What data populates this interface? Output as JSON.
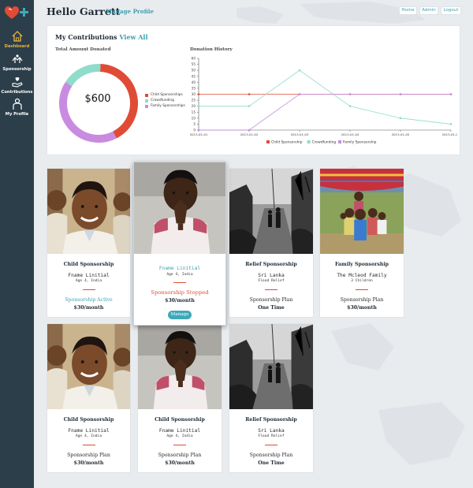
{
  "header": {
    "greeting": "Hello Garrett",
    "manage_profile": "Manage Profile",
    "nav": [
      "Home",
      "Admin",
      "Logout"
    ]
  },
  "sidebar": {
    "logo_icon": "heart-plus-logo",
    "items": [
      {
        "label": "Dashboard",
        "icon": "home-icon",
        "active": true
      },
      {
        "label": "Sponsorship",
        "icon": "hands-icon",
        "active": false
      },
      {
        "label": "Contributions",
        "icon": "hand-heart-icon",
        "active": false
      },
      {
        "label": "My Profile",
        "icon": "person-icon",
        "active": false
      }
    ]
  },
  "contributions": {
    "title": "My Contributions",
    "view_all": "View All",
    "total_label": "Total Amount Donated",
    "total_value": "$600",
    "history_label": "Donation History"
  },
  "colors": {
    "child": "#e04b35",
    "crowd": "#8fdccb",
    "family": "#c98be0",
    "accent": "#3e9fae",
    "sidebar": "#2c3e4a"
  },
  "chart_data": [
    {
      "type": "pie",
      "title": "Total Amount Donated",
      "center_label": "$600",
      "categories": [
        "Child Sponsorships",
        "Crowdfunding",
        "Family Sponsorships"
      ],
      "values": [
        250,
        100,
        250
      ]
    },
    {
      "type": "line",
      "title": "Donation History",
      "x": [
        "2013-01-01",
        "2013-01-02",
        "2013-01-03",
        "2013-01-04",
        "2013-01-05",
        "2013-01-06"
      ],
      "series": [
        {
          "name": "Child Sponsorship",
          "values": [
            30,
            30,
            30,
            30,
            30,
            30
          ]
        },
        {
          "name": "Crowdfunding",
          "values": [
            20,
            20,
            50,
            20,
            10,
            5
          ]
        },
        {
          "name": "Family Sponsorship",
          "values": [
            0,
            0,
            30,
            30,
            30,
            30
          ]
        }
      ],
      "ylim": [
        0,
        60
      ],
      "yticks": [
        0,
        5,
        10,
        15,
        20,
        25,
        30,
        35,
        40,
        45,
        50,
        55,
        60
      ],
      "legend": "bottom",
      "grid": false
    }
  ],
  "cards": [
    {
      "type": "Child Sponsorship",
      "name": "Fname Linitial",
      "sub": "Age 4, India",
      "status": "Sponsorship Active",
      "amount": "$30/month",
      "photo": "boy-smiling"
    },
    {
      "type": "",
      "name": "Fname Linitial",
      "sub": "Age 4, India",
      "status": "Sponsorship Stopped",
      "amount": "$30/month",
      "button": "Manage",
      "photo": "girl-praying"
    },
    {
      "type": "Relief Sponsorship",
      "name": "Sri Lanka",
      "sub": "Flood Relief",
      "status": "Sponsorship Plan",
      "amount": "One Time",
      "photo": "flood-street"
    },
    {
      "type": "Family Sponsorship",
      "name": "The Mcleod Family",
      "sub": "3 Children",
      "status": "Sponsorship Plan",
      "amount": "$30/month",
      "photo": "family-children"
    },
    {
      "type": "Child Sponsorship",
      "name": "Fname Linitial",
      "sub": "Age 4, India",
      "status": "Sponsorship Plan",
      "amount": "$30/month",
      "photo": "boy-smiling"
    },
    {
      "type": "Child Sponsorship",
      "name": "Fname Linitial",
      "sub": "Age 4, India",
      "status": "Sponsorship Plan",
      "amount": "$30/month",
      "photo": "girl-praying"
    },
    {
      "type": "Relief Sponsorship",
      "name": "Sri Lanka",
      "sub": "Flood Relief",
      "status": "Sponsorship Plan",
      "amount": "One Time",
      "photo": "flood-street"
    }
  ]
}
